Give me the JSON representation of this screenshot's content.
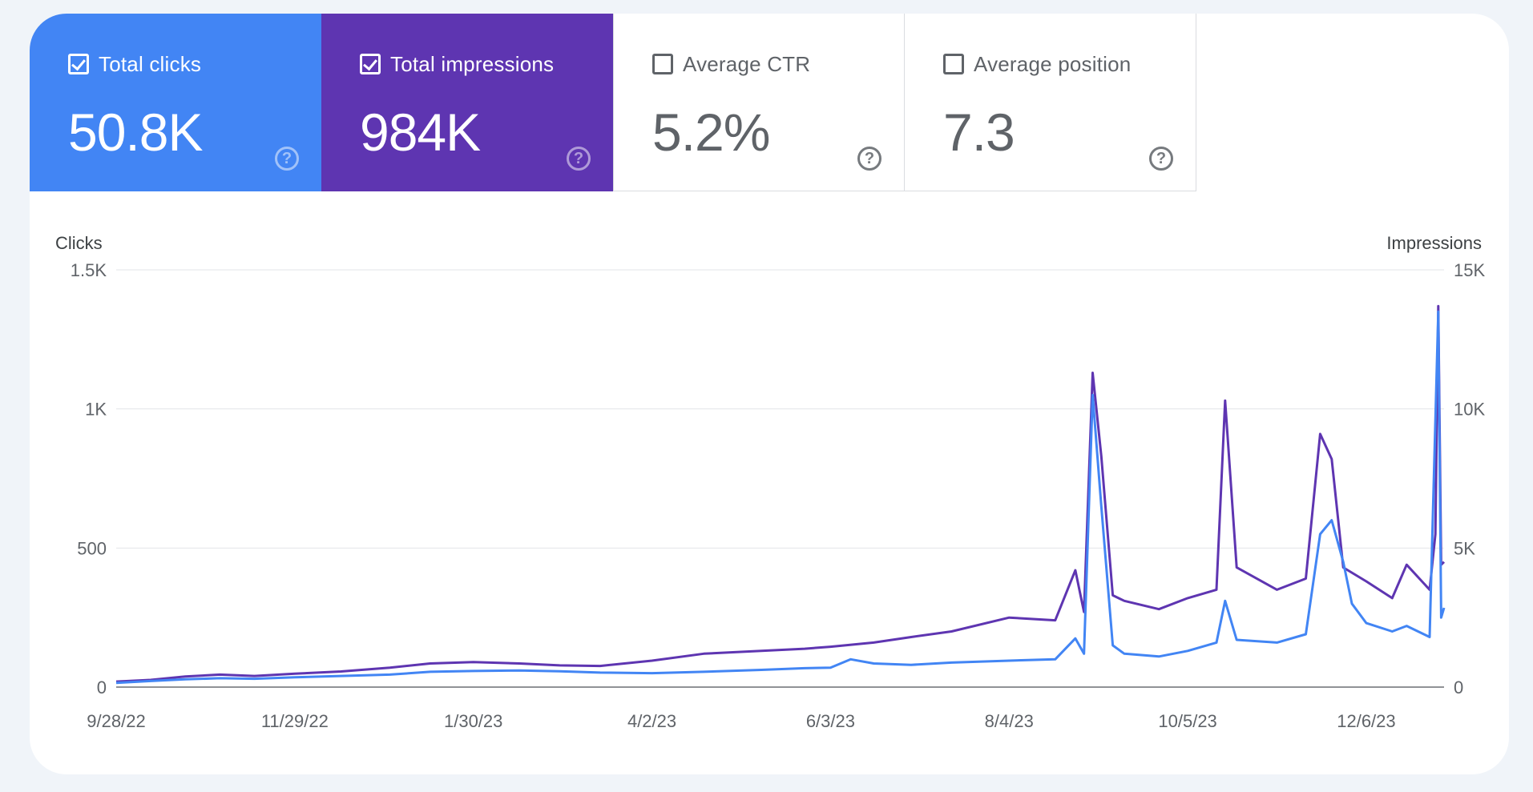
{
  "metrics": [
    {
      "key": "clicks",
      "label": "Total clicks",
      "value": "50.8K",
      "checked": true,
      "color": "#4285f4"
    },
    {
      "key": "impressions",
      "label": "Total impressions",
      "value": "984K",
      "checked": true,
      "color": "#5e35b1"
    },
    {
      "key": "ctr",
      "label": "Average CTR",
      "value": "5.2%",
      "checked": false
    },
    {
      "key": "position",
      "label": "Average position",
      "value": "7.3",
      "checked": false
    }
  ],
  "chart_data": {
    "type": "line",
    "ylabel_left": "Clicks",
    "ylabel_right": "Impressions",
    "left_ticks": [
      "0",
      "500",
      "1K",
      "1.5K"
    ],
    "right_ticks": [
      "0",
      "5K",
      "10K",
      "15K"
    ],
    "ylim_left": [
      0,
      1500
    ],
    "ylim_right": [
      0,
      15000
    ],
    "x_ticks": [
      "9/28/22",
      "11/29/22",
      "1/30/23",
      "4/2/23",
      "6/3/23",
      "8/4/23",
      "10/5/23",
      "12/6/23"
    ],
    "grid": true,
    "x_start": "9/28/22",
    "x_end": "1/2/24",
    "series": [
      {
        "name": "Clicks",
        "axis": "left",
        "color": "#4285f4",
        "points": [
          [
            "9/28/22",
            15
          ],
          [
            "10/10/22",
            22
          ],
          [
            "10/22/22",
            28
          ],
          [
            "11/3/22",
            32
          ],
          [
            "11/15/22",
            30
          ],
          [
            "11/29/22",
            35
          ],
          [
            "12/15/22",
            40
          ],
          [
            "1/1/23",
            45
          ],
          [
            "1/15/23",
            55
          ],
          [
            "1/30/23",
            58
          ],
          [
            "2/15/23",
            60
          ],
          [
            "3/1/23",
            57
          ],
          [
            "3/15/23",
            52
          ],
          [
            "4/2/23",
            50
          ],
          [
            "4/20/23",
            55
          ],
          [
            "5/10/23",
            62
          ],
          [
            "5/25/23",
            68
          ],
          [
            "6/3/23",
            70
          ],
          [
            "6/10/23",
            100
          ],
          [
            "6/18/23",
            85
          ],
          [
            "7/1/23",
            80
          ],
          [
            "7/15/23",
            88
          ],
          [
            "8/4/23",
            95
          ],
          [
            "8/20/23",
            100
          ],
          [
            "8/27/23",
            175
          ],
          [
            "8/30/23",
            120
          ],
          [
            "9/2/23",
            1050
          ],
          [
            "9/5/23",
            650
          ],
          [
            "9/9/23",
            150
          ],
          [
            "9/13/23",
            120
          ],
          [
            "9/25/23",
            110
          ],
          [
            "10/5/23",
            130
          ],
          [
            "10/15/23",
            160
          ],
          [
            "10/18/23",
            310
          ],
          [
            "10/22/23",
            170
          ],
          [
            "11/5/23",
            160
          ],
          [
            "11/15/23",
            190
          ],
          [
            "11/20/23",
            550
          ],
          [
            "11/24/23",
            600
          ],
          [
            "11/28/23",
            450
          ],
          [
            "12/1/23",
            300
          ],
          [
            "12/6/23",
            230
          ],
          [
            "12/15/23",
            200
          ],
          [
            "12/20/23",
            220
          ],
          [
            "12/28/23",
            180
          ],
          [
            "12/31/23",
            1350
          ],
          [
            "1/1/24",
            250
          ],
          [
            "1/2/24",
            285
          ]
        ]
      },
      {
        "name": "Impressions",
        "axis": "right",
        "color": "#5e35b1",
        "points": [
          [
            "9/28/22",
            200
          ],
          [
            "10/10/22",
            260
          ],
          [
            "10/22/22",
            380
          ],
          [
            "11/3/22",
            450
          ],
          [
            "11/15/22",
            400
          ],
          [
            "11/29/22",
            480
          ],
          [
            "12/15/22",
            560
          ],
          [
            "1/1/23",
            700
          ],
          [
            "1/15/23",
            850
          ],
          [
            "1/30/23",
            900
          ],
          [
            "2/15/23",
            850
          ],
          [
            "3/1/23",
            780
          ],
          [
            "3/15/23",
            760
          ],
          [
            "4/2/23",
            950
          ],
          [
            "4/20/23",
            1200
          ],
          [
            "5/10/23",
            1300
          ],
          [
            "5/25/23",
            1380
          ],
          [
            "6/3/23",
            1450
          ],
          [
            "6/18/23",
            1600
          ],
          [
            "7/1/23",
            1800
          ],
          [
            "7/15/23",
            2000
          ],
          [
            "8/4/23",
            2500
          ],
          [
            "8/20/23",
            2400
          ],
          [
            "8/27/23",
            4200
          ],
          [
            "8/30/23",
            2700
          ],
          [
            "9/2/23",
            11300
          ],
          [
            "9/5/23",
            8300
          ],
          [
            "9/9/23",
            3300
          ],
          [
            "9/13/23",
            3100
          ],
          [
            "9/25/23",
            2800
          ],
          [
            "10/5/23",
            3200
          ],
          [
            "10/15/23",
            3500
          ],
          [
            "10/18/23",
            10300
          ],
          [
            "10/22/23",
            4300
          ],
          [
            "11/5/23",
            3500
          ],
          [
            "11/15/23",
            3900
          ],
          [
            "11/20/23",
            9100
          ],
          [
            "11/24/23",
            8200
          ],
          [
            "11/28/23",
            4300
          ],
          [
            "12/6/23",
            3800
          ],
          [
            "12/15/23",
            3200
          ],
          [
            "12/20/23",
            4400
          ],
          [
            "12/28/23",
            3500
          ],
          [
            "12/30/23",
            5500
          ],
          [
            "12/31/23",
            13700
          ],
          [
            "1/1/24",
            4400
          ],
          [
            "1/2/24",
            4500
          ]
        ]
      }
    ]
  }
}
